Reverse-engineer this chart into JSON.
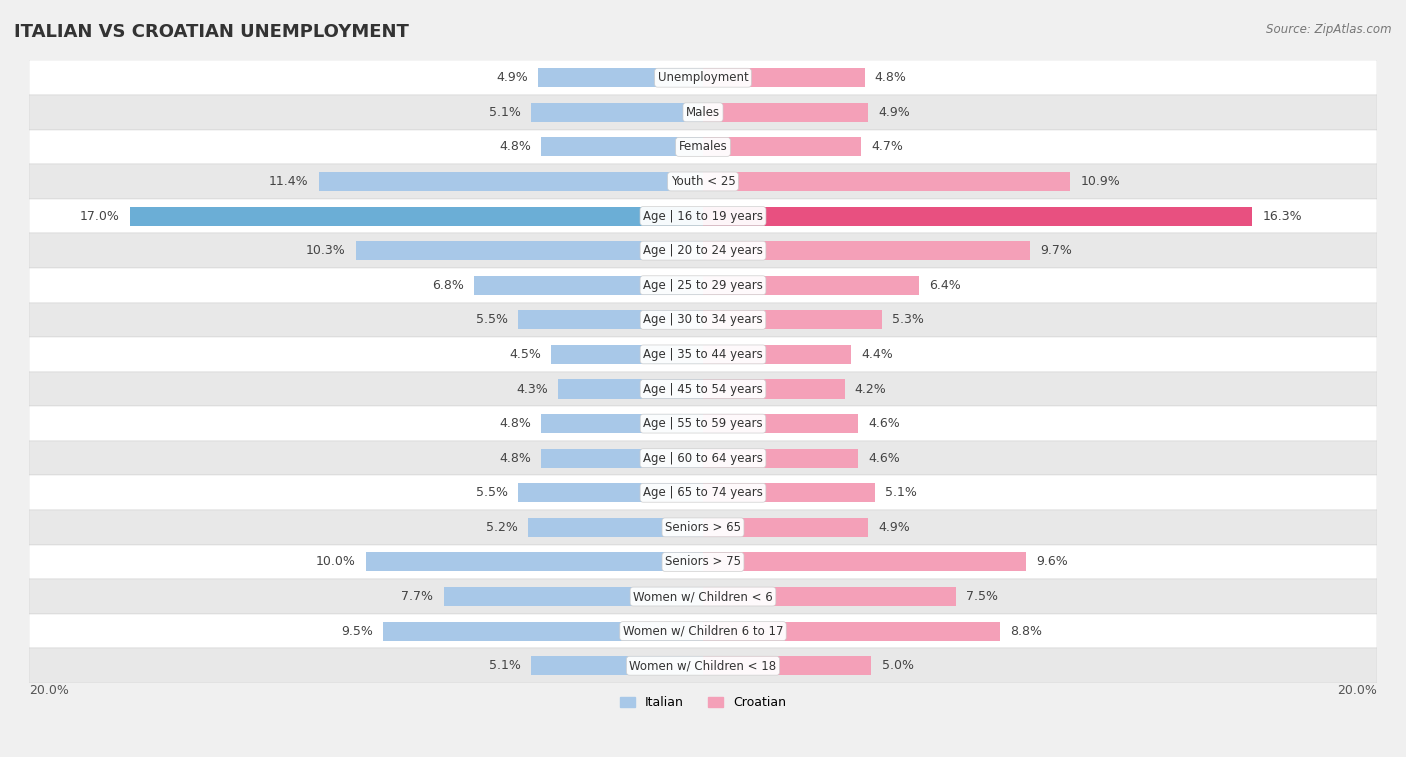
{
  "title": "ITALIAN VS CROATIAN UNEMPLOYMENT",
  "source": "Source: ZipAtlas.com",
  "categories": [
    "Unemployment",
    "Males",
    "Females",
    "Youth < 25",
    "Age | 16 to 19 years",
    "Age | 20 to 24 years",
    "Age | 25 to 29 years",
    "Age | 30 to 34 years",
    "Age | 35 to 44 years",
    "Age | 45 to 54 years",
    "Age | 55 to 59 years",
    "Age | 60 to 64 years",
    "Age | 65 to 74 years",
    "Seniors > 65",
    "Seniors > 75",
    "Women w/ Children < 6",
    "Women w/ Children 6 to 17",
    "Women w/ Children < 18"
  ],
  "italian": [
    4.9,
    5.1,
    4.8,
    11.4,
    17.0,
    10.3,
    6.8,
    5.5,
    4.5,
    4.3,
    4.8,
    4.8,
    5.5,
    5.2,
    10.0,
    7.7,
    9.5,
    5.1
  ],
  "croatian": [
    4.8,
    4.9,
    4.7,
    10.9,
    16.3,
    9.7,
    6.4,
    5.3,
    4.4,
    4.2,
    4.6,
    4.6,
    5.1,
    4.9,
    9.6,
    7.5,
    8.8,
    5.0
  ],
  "italian_color": "#a8c8e8",
  "croatian_color": "#f4a0b8",
  "italian_highlight_color": "#6baed6",
  "croatian_highlight_color": "#e85080",
  "bar_height": 0.55,
  "max_val": 20.0,
  "bg_color": "#f0f0f0",
  "row_light": "#ffffff",
  "row_dark": "#e8e8e8",
  "legend_italian": "Italian",
  "legend_croatian": "Croatian",
  "title_fontsize": 13,
  "label_fontsize": 9,
  "category_fontsize": 8.5
}
